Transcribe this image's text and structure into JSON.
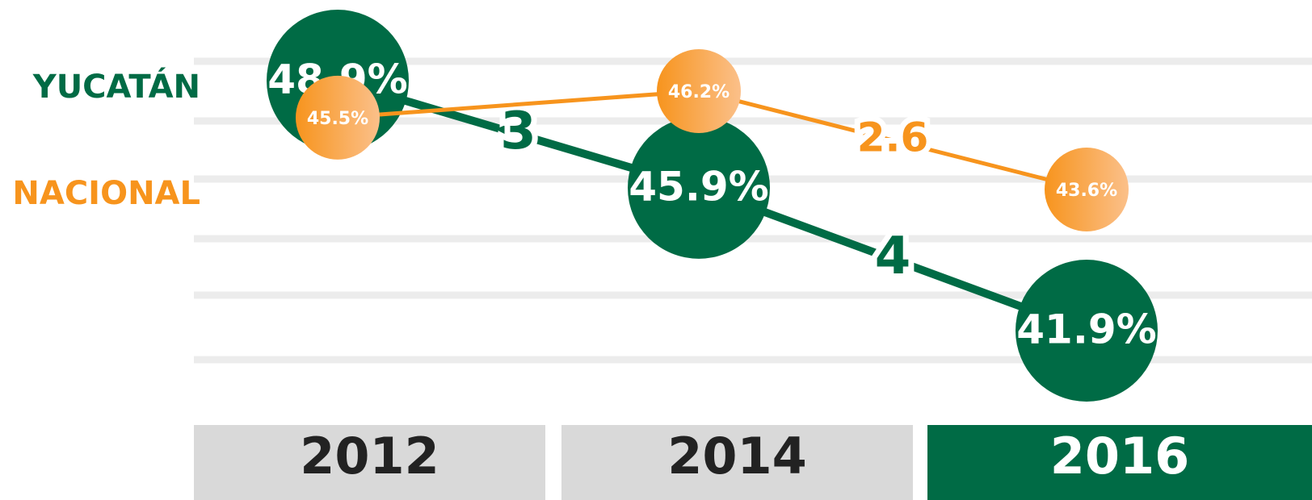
{
  "chart_data": {
    "type": "line",
    "categories": [
      "2012",
      "2014",
      "2016"
    ],
    "series": [
      {
        "name": "YUCATÁN",
        "color": "#006b45",
        "values": [
          48.9,
          45.9,
          41.9
        ],
        "value_labels": [
          "48.9%",
          "45.9%",
          "41.9%"
        ],
        "changes": [
          3,
          4
        ]
      },
      {
        "name": "NACIONAL",
        "color": "#f7941d",
        "values": [
          45.5,
          46.2,
          43.6
        ],
        "value_labels": [
          "45.5%",
          "46.2%",
          "43.6%"
        ],
        "changes": [
          null,
          2.6
        ]
      }
    ]
  }
}
